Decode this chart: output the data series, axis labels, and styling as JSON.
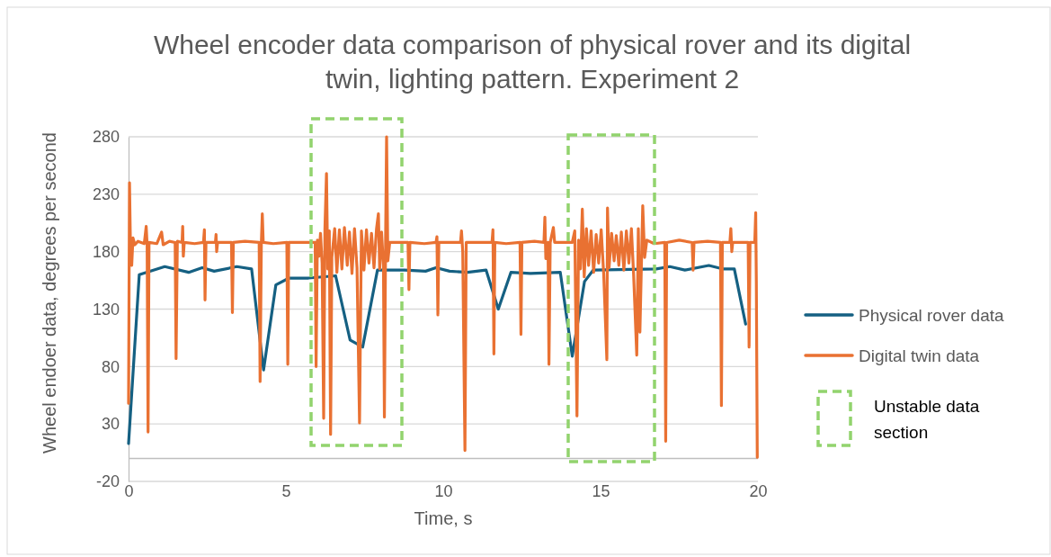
{
  "chart_data": {
    "type": "line",
    "title": "Wheel encoder data comparison of physical rover and its digital twin, lighting pattern. Experiment 2",
    "xlabel": "Time, s",
    "ylabel": "Wheel endoer data, degrees per second",
    "xlim": [
      0,
      20
    ],
    "xticks": [
      0,
      5,
      10,
      15,
      20
    ],
    "ylim": [
      -20,
      280
    ],
    "yticks": [
      -20,
      30,
      80,
      130,
      180,
      230,
      280
    ],
    "grid": "y",
    "legend": "right",
    "marker": "none",
    "line_style": "solid",
    "annotations": [
      "Unstable data section"
    ],
    "series": [
      {
        "name": "Physical rover data",
        "color": "#156082",
        "x": [
          0,
          0.34,
          1.15,
          1.91,
          2.34,
          2.72,
          3.44,
          3.91,
          4.29,
          4.68,
          5.1,
          5.72,
          6.58,
          7.04,
          7.44,
          7.91,
          8.77,
          9.44,
          9.77,
          10.2,
          10.77,
          11.36,
          11.75,
          12.15,
          12.77,
          13.72,
          14.1,
          14.49,
          14.77,
          16.77,
          17.2,
          17.68,
          18.44,
          18.87,
          19.25,
          19.61
        ],
        "values": [
          13,
          160,
          167,
          162,
          166,
          163,
          167,
          165,
          77,
          151,
          157,
          157,
          159,
          103,
          97,
          164,
          164,
          163,
          166,
          163,
          162,
          164,
          130,
          162,
          161,
          162,
          89,
          154,
          164,
          165,
          167,
          164,
          168,
          165,
          165,
          117
        ]
      },
      {
        "name": "Digital twin data",
        "color": "#e97132",
        "x": [
          0,
          0.03,
          0.06,
          0.1,
          0.14,
          0.2,
          0.3,
          0.5,
          0.56,
          0.59,
          0.62,
          0.65,
          0.9,
          1.05,
          1.1,
          1.3,
          1.48,
          1.51,
          1.55,
          1.7,
          1.72,
          1.74,
          1.77,
          2.1,
          2.38,
          2.41,
          2.43,
          2.46,
          2.76,
          2.78,
          2.8,
          2.83,
          3.27,
          3.3,
          3.33,
          3.7,
          4.15,
          4.18,
          4.22,
          4.25,
          4.28,
          4.6,
          5.03,
          5.06,
          5.09,
          5.5,
          5.93,
          5.96,
          6.0,
          6.05,
          6.1,
          6.15,
          6.2,
          6.24,
          6.29,
          6.33,
          6.38,
          6.42,
          6.46,
          6.55,
          6.62,
          6.7,
          6.78,
          6.86,
          6.95,
          7.02,
          7.1,
          7.18,
          7.26,
          7.34,
          7.4,
          7.48,
          7.56,
          7.64,
          7.72,
          7.8,
          7.88,
          7.94,
          7.98,
          8.04,
          8.1,
          8.13,
          8.17,
          8.2,
          8.24,
          8.3,
          8.6,
          8.88,
          8.91,
          8.94,
          9.4,
          9.77,
          9.8,
          9.83,
          9.86,
          10.2,
          10.55,
          10.58,
          10.62,
          10.69,
          10.73,
          11.1,
          11.55,
          11.58,
          11.61,
          11.64,
          12.0,
          12.44,
          12.47,
          12.5,
          12.9,
          13.2,
          13.23,
          13.26,
          13.33,
          13.36,
          13.4,
          13.5,
          13.54,
          13.9,
          14.1,
          14.18,
          14.25,
          14.3,
          14.36,
          14.42,
          14.48,
          14.55,
          14.62,
          14.7,
          14.78,
          14.86,
          14.94,
          15.02,
          15.1,
          15.2,
          15.22,
          15.27,
          15.35,
          15.43,
          15.5,
          15.58,
          15.66,
          15.74,
          15.82,
          15.9,
          15.98,
          16.05,
          16.15,
          16.2,
          16.25,
          16.34,
          16.4,
          16.47,
          16.7,
          17.04,
          17.07,
          17.1,
          17.5,
          17.91,
          17.94,
          17.97,
          18.4,
          18.81,
          18.84,
          18.87,
          19.11,
          19.14,
          19.17,
          19.2,
          19.69,
          19.72,
          19.75,
          19.9,
          19.93,
          19.95,
          19.98
        ],
        "values": [
          48,
          240,
          185,
          168,
          192,
          186,
          189,
          187,
          202,
          186,
          23,
          188,
          187,
          197,
          186,
          189,
          188,
          87,
          189,
          188,
          202,
          176,
          188,
          187,
          188,
          199,
          138,
          188,
          188,
          195,
          180,
          188,
          188,
          127,
          188,
          189,
          188,
          67,
          188,
          213,
          188,
          187,
          188,
          82,
          188,
          188,
          188,
          80,
          190,
          176,
          196,
          170,
          35,
          200,
          248,
          165,
          198,
          21,
          175,
          200,
          162,
          199,
          165,
          201,
          168,
          197,
          161,
          200,
          166,
          31,
          198,
          164,
          199,
          170,
          196,
          166,
          200,
          213,
          165,
          197,
          168,
          36,
          195,
          280,
          172,
          188,
          188,
          188,
          147,
          188,
          187,
          188,
          193,
          125,
          188,
          188,
          188,
          198,
          180,
          7,
          188,
          188,
          188,
          199,
          91,
          188,
          187,
          188,
          108,
          188,
          189,
          188,
          210,
          174,
          188,
          82,
          188,
          201,
          188,
          188,
          188,
          198,
          37,
          190,
          165,
          217,
          158,
          200,
          168,
          198,
          162,
          195,
          170,
          199,
          160,
          86,
          218,
          166,
          196,
          172,
          194,
          168,
          197,
          164,
          198,
          170,
          200,
          160,
          90,
          200,
          110,
          220,
          175,
          190,
          187,
          188,
          15,
          188,
          190,
          188,
          164,
          188,
          189,
          188,
          46,
          188,
          188,
          200,
          180,
          188,
          188,
          97,
          188,
          188,
          214,
          154,
          1
        ]
      }
    ]
  }
}
